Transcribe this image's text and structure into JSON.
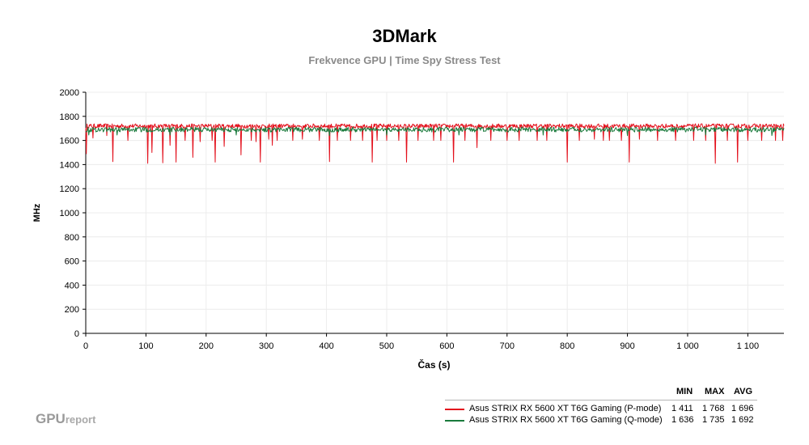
{
  "chart_data": {
    "type": "line",
    "title": "3DMark",
    "subtitle": "Frekvence GPU | Time Spy Stress Test",
    "xlabel": "Čas (s)",
    "ylabel": "MHz",
    "xlim": [
      0,
      1160
    ],
    "ylim": [
      0,
      2000
    ],
    "x_ticks": [
      0,
      100,
      200,
      300,
      400,
      500,
      600,
      700,
      800,
      900,
      1000,
      1100
    ],
    "x_tick_labels": [
      "0",
      "100",
      "200",
      "300",
      "400",
      "500",
      "600",
      "700",
      "800",
      "900",
      "1 000",
      "1 100"
    ],
    "y_ticks": [
      0,
      200,
      400,
      600,
      800,
      1000,
      1200,
      1400,
      1600,
      1800,
      2000
    ],
    "y_tick_labels": [
      "0",
      "200",
      "400",
      "600",
      "800",
      "1000",
      "1200",
      "1400",
      "1600",
      "1800",
      "2000"
    ],
    "grid": true,
    "legend_position": "bottom-right",
    "series": [
      {
        "name": "Asus STRIX RX 5600 XT T6G Gaming (P-mode)",
        "color": "#e3101c",
        "min": "1 411",
        "max": "1 768",
        "avg": "1 696",
        "baseline": 1720,
        "noise": 18,
        "dips": [
          [
            1,
            1490
          ],
          [
            12,
            1620
          ],
          [
            35,
            1640
          ],
          [
            45,
            1425
          ],
          [
            70,
            1600
          ],
          [
            103,
            1410
          ],
          [
            110,
            1500
          ],
          [
            128,
            1415
          ],
          [
            140,
            1560
          ],
          [
            150,
            1420
          ],
          [
            165,
            1600
          ],
          [
            178,
            1460
          ],
          [
            190,
            1590
          ],
          [
            210,
            1600
          ],
          [
            215,
            1420
          ],
          [
            230,
            1550
          ],
          [
            258,
            1480
          ],
          [
            275,
            1600
          ],
          [
            283,
            1590
          ],
          [
            290,
            1420
          ],
          [
            304,
            1610
          ],
          [
            310,
            1560
          ],
          [
            318,
            1600
          ],
          [
            344,
            1600
          ],
          [
            360,
            1610
          ],
          [
            388,
            1600
          ],
          [
            405,
            1425
          ],
          [
            418,
            1600
          ],
          [
            440,
            1600
          ],
          [
            460,
            1600
          ],
          [
            476,
            1420
          ],
          [
            484,
            1600
          ],
          [
            500,
            1600
          ],
          [
            520,
            1600
          ],
          [
            533,
            1420
          ],
          [
            552,
            1600
          ],
          [
            578,
            1600
          ],
          [
            590,
            1600
          ],
          [
            611,
            1420
          ],
          [
            630,
            1600
          ],
          [
            650,
            1540
          ],
          [
            673,
            1600
          ],
          [
            700,
            1600
          ],
          [
            720,
            1600
          ],
          [
            750,
            1600
          ],
          [
            766,
            1600
          ],
          [
            800,
            1420
          ],
          [
            820,
            1600
          ],
          [
            845,
            1610
          ],
          [
            860,
            1600
          ],
          [
            870,
            1600
          ],
          [
            890,
            1600
          ],
          [
            903,
            1420
          ],
          [
            920,
            1610
          ],
          [
            950,
            1600
          ],
          [
            980,
            1600
          ],
          [
            1010,
            1600
          ],
          [
            1030,
            1600
          ],
          [
            1046,
            1410
          ],
          [
            1066,
            1600
          ],
          [
            1083,
            1420
          ],
          [
            1100,
            1600
          ],
          [
            1123,
            1600
          ],
          [
            1146,
            1600
          ],
          [
            1158,
            1600
          ]
        ]
      },
      {
        "name": "Asus STRIX RX 5600 XT T6G Gaming (Q-mode)",
        "color": "#1a7a3c",
        "min": "1 636",
        "max": "1 735",
        "avg": "1 692",
        "baseline": 1690,
        "noise": 20,
        "dips": [
          [
            5,
            1645
          ],
          [
            52,
            1645
          ],
          [
            140,
            1645
          ],
          [
            250,
            1645
          ],
          [
            405,
            1640
          ],
          [
            500,
            1645
          ],
          [
            620,
            1645
          ],
          [
            760,
            1645
          ],
          [
            900,
            1640
          ],
          [
            1030,
            1645
          ],
          [
            1140,
            1640
          ]
        ]
      }
    ],
    "legend_headers": [
      "MIN",
      "MAX",
      "AVG"
    ]
  },
  "logo": {
    "main": "GPU",
    "small": "report"
  }
}
